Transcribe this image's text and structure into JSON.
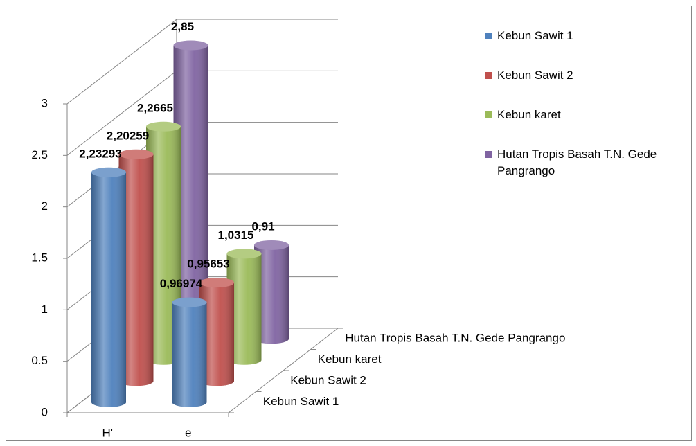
{
  "chart_data": {
    "type": "bar3d",
    "categories": [
      "H'",
      "e"
    ],
    "series": [
      {
        "name": "Kebun Sawit 1",
        "color": "#4f81bd",
        "values": [
          2.23293,
          0.96974
        ],
        "value_labels": [
          "2,23293",
          "0,96974"
        ]
      },
      {
        "name": "Kebun Sawit 2",
        "color": "#c0504d",
        "values": [
          2.20259,
          0.95653
        ],
        "value_labels": [
          "2,20259",
          "0,95653"
        ]
      },
      {
        "name": "Kebun karet",
        "color": "#9bbb59",
        "values": [
          2.2665,
          1.0315
        ],
        "value_labels": [
          "2,2665",
          "1,0315"
        ]
      },
      {
        "name": "Hutan Tropis Basah T.N. Gede Pangrango",
        "color": "#8064a2",
        "values": [
          2.85,
          0.91
        ],
        "value_labels": [
          "2,85",
          "0,91"
        ]
      }
    ],
    "ylim": [
      0,
      3
    ],
    "yticks": [
      0,
      0.5,
      1,
      1.5,
      2,
      2.5,
      3
    ],
    "grid": true,
    "legend": "right"
  }
}
